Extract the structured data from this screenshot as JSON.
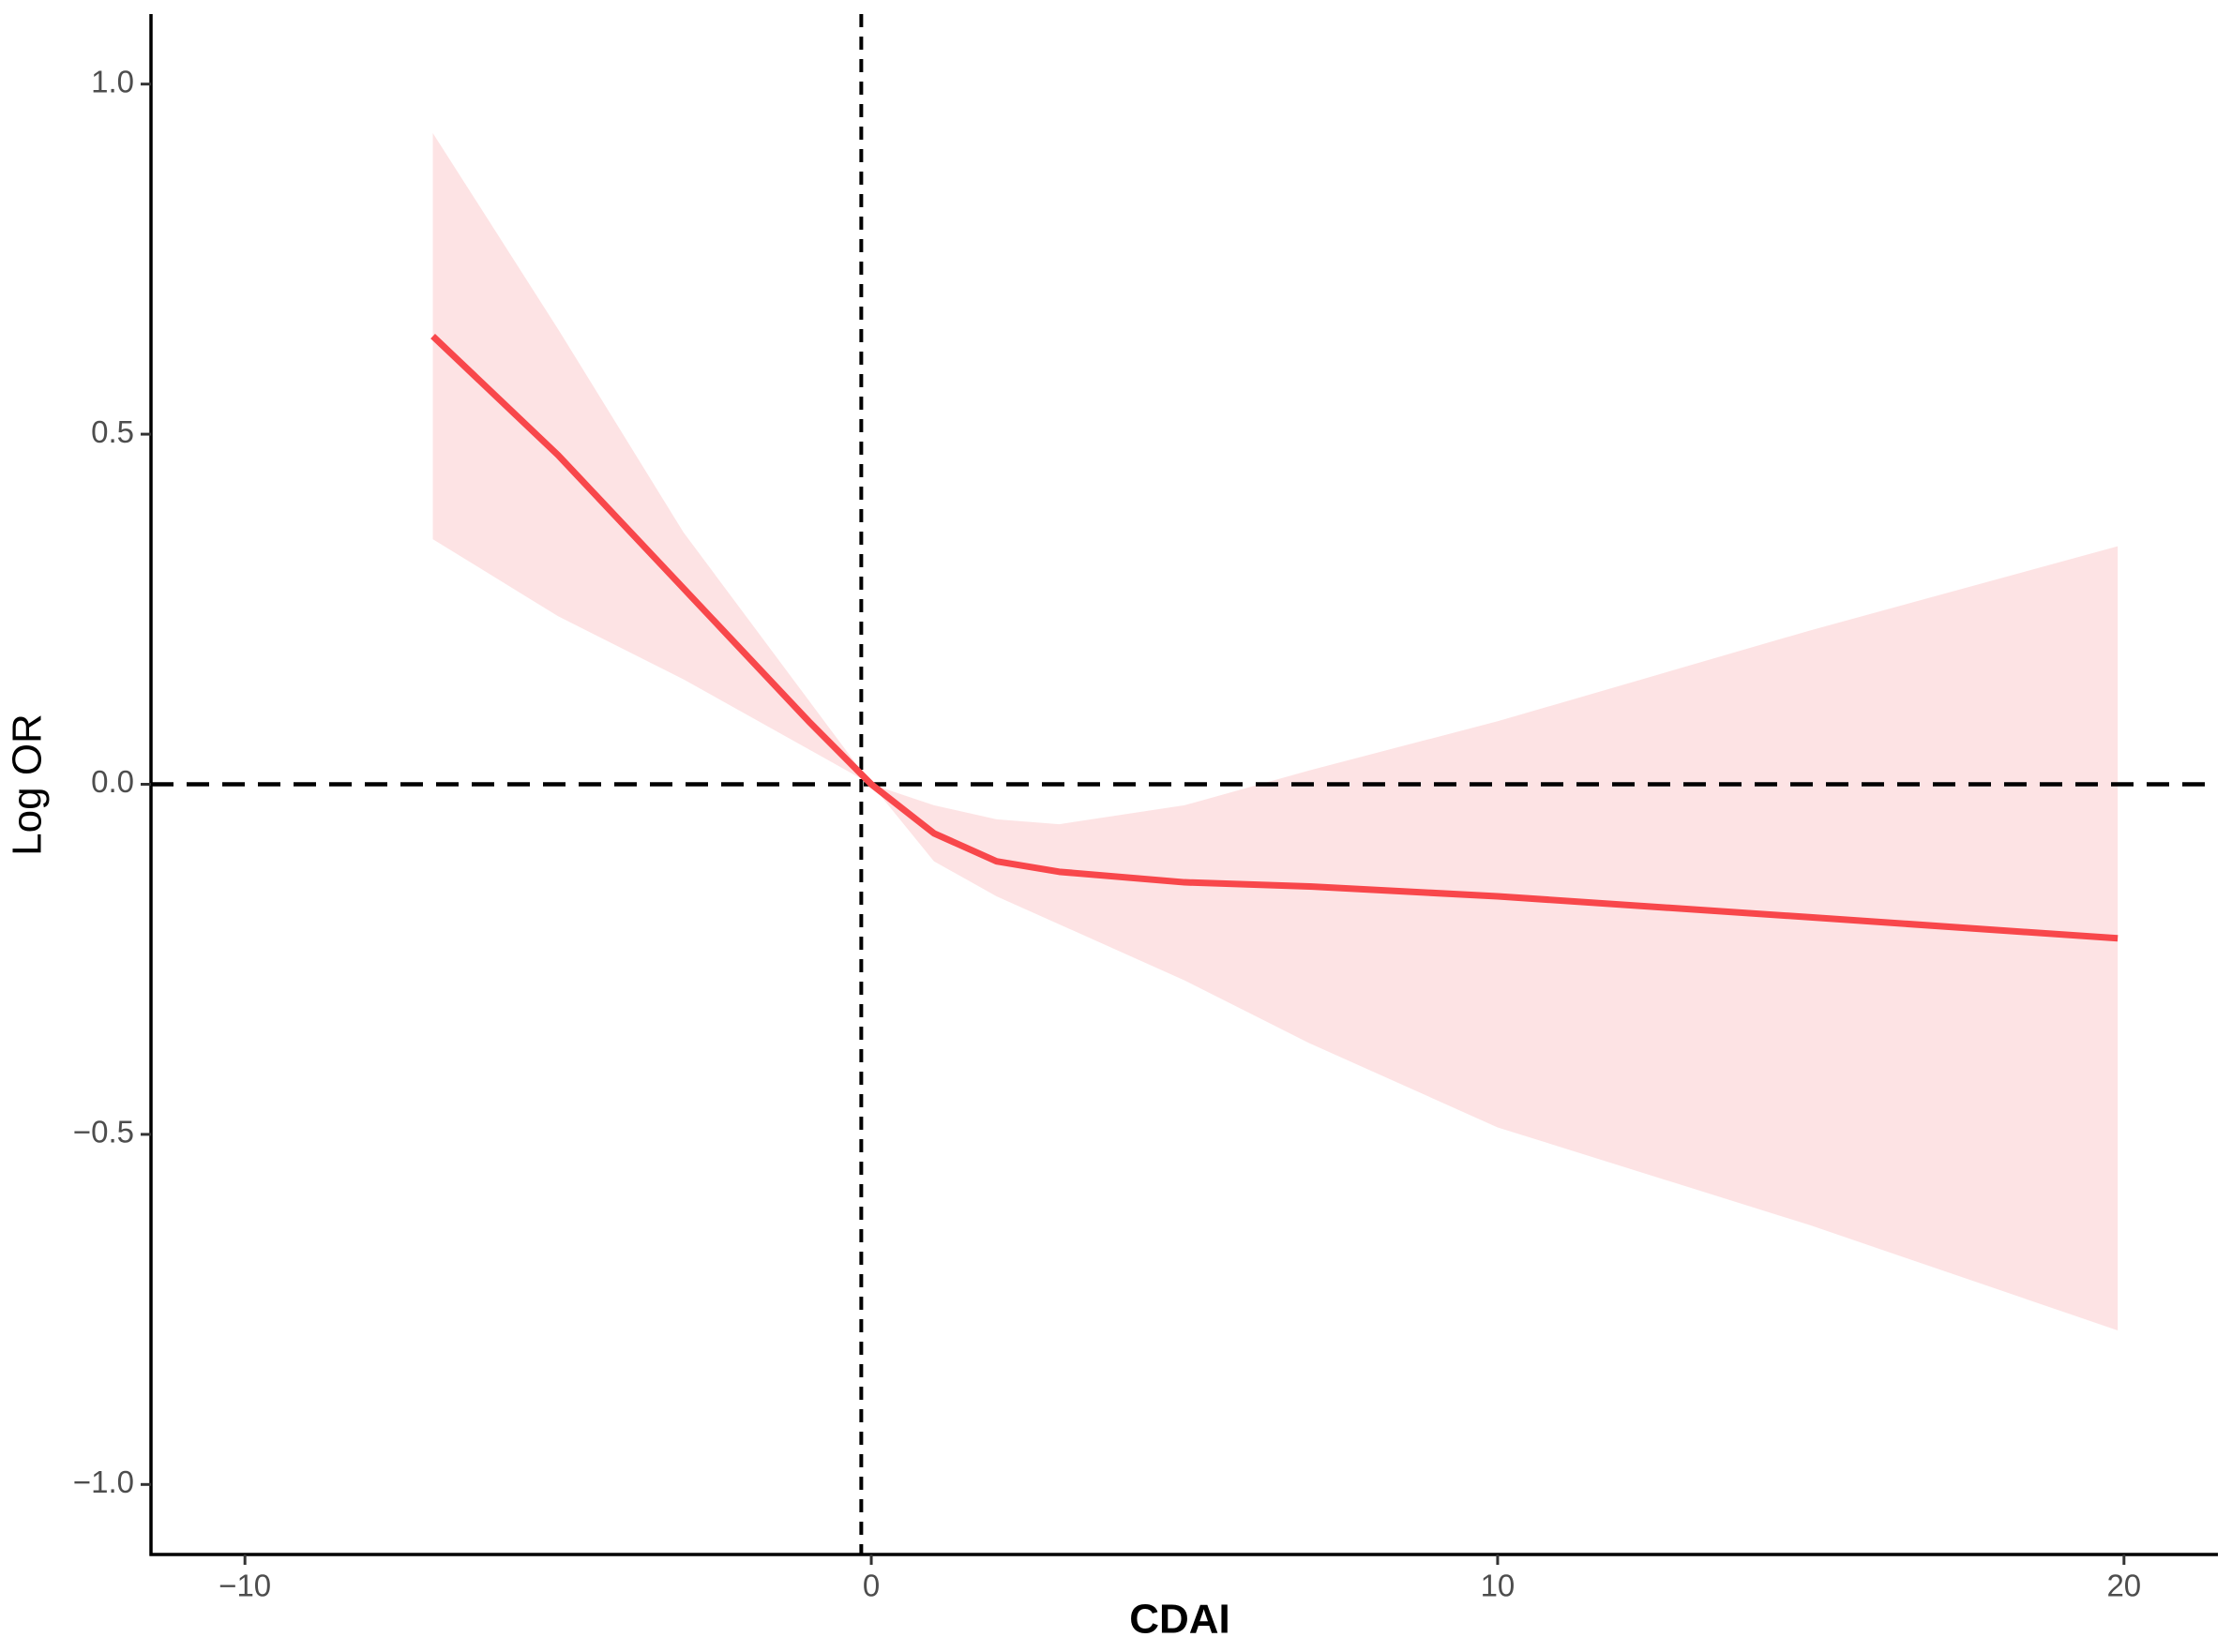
{
  "chart_data": {
    "type": "line",
    "x_label": "CDAI",
    "y_label": "Log OR",
    "x": [
      -7,
      -5,
      -3,
      -1,
      0,
      1,
      2,
      3,
      5,
      7,
      10,
      15,
      19.9
    ],
    "series": [
      {
        "color": "#f8474b",
        "values": [
          0.64,
          0.47,
          0.28,
          0.09,
          0,
          -0.07,
          -0.11,
          -0.125,
          -0.14,
          -0.146,
          -0.16,
          -0.19,
          -0.22
        ]
      }
    ],
    "band": {
      "color": "#fde3e4",
      "lower": [
        0.35,
        0.24,
        0.15,
        0.05,
        0,
        -0.11,
        -0.16,
        -0.2,
        -0.28,
        -0.37,
        -0.49,
        -0.63,
        -0.78
      ],
      "upper": [
        0.93,
        0.65,
        0.36,
        0.12,
        0,
        -0.03,
        -0.05,
        -0.057,
        -0.03,
        0.02,
        0.09,
        0.22,
        0.34
      ]
    },
    "hlines": [
      0
    ],
    "vlines": [
      -0.16
    ],
    "xlim": [
      -11.5,
      21.5
    ],
    "ylim": [
      -1.1,
      1.1
    ],
    "xticks": [
      {
        "value": -10,
        "label": "−10"
      },
      0,
      10,
      20
    ],
    "yticks": [
      {
        "value": -1,
        "label": "−1.0"
      },
      {
        "value": -0.5,
        "label": "−0.5"
      },
      {
        "value": 0,
        "label": "0.0"
      },
      {
        "value": 0.5,
        "label": "0.5"
      },
      {
        "value": 1,
        "label": "1.0"
      }
    ],
    "grid": false
  }
}
